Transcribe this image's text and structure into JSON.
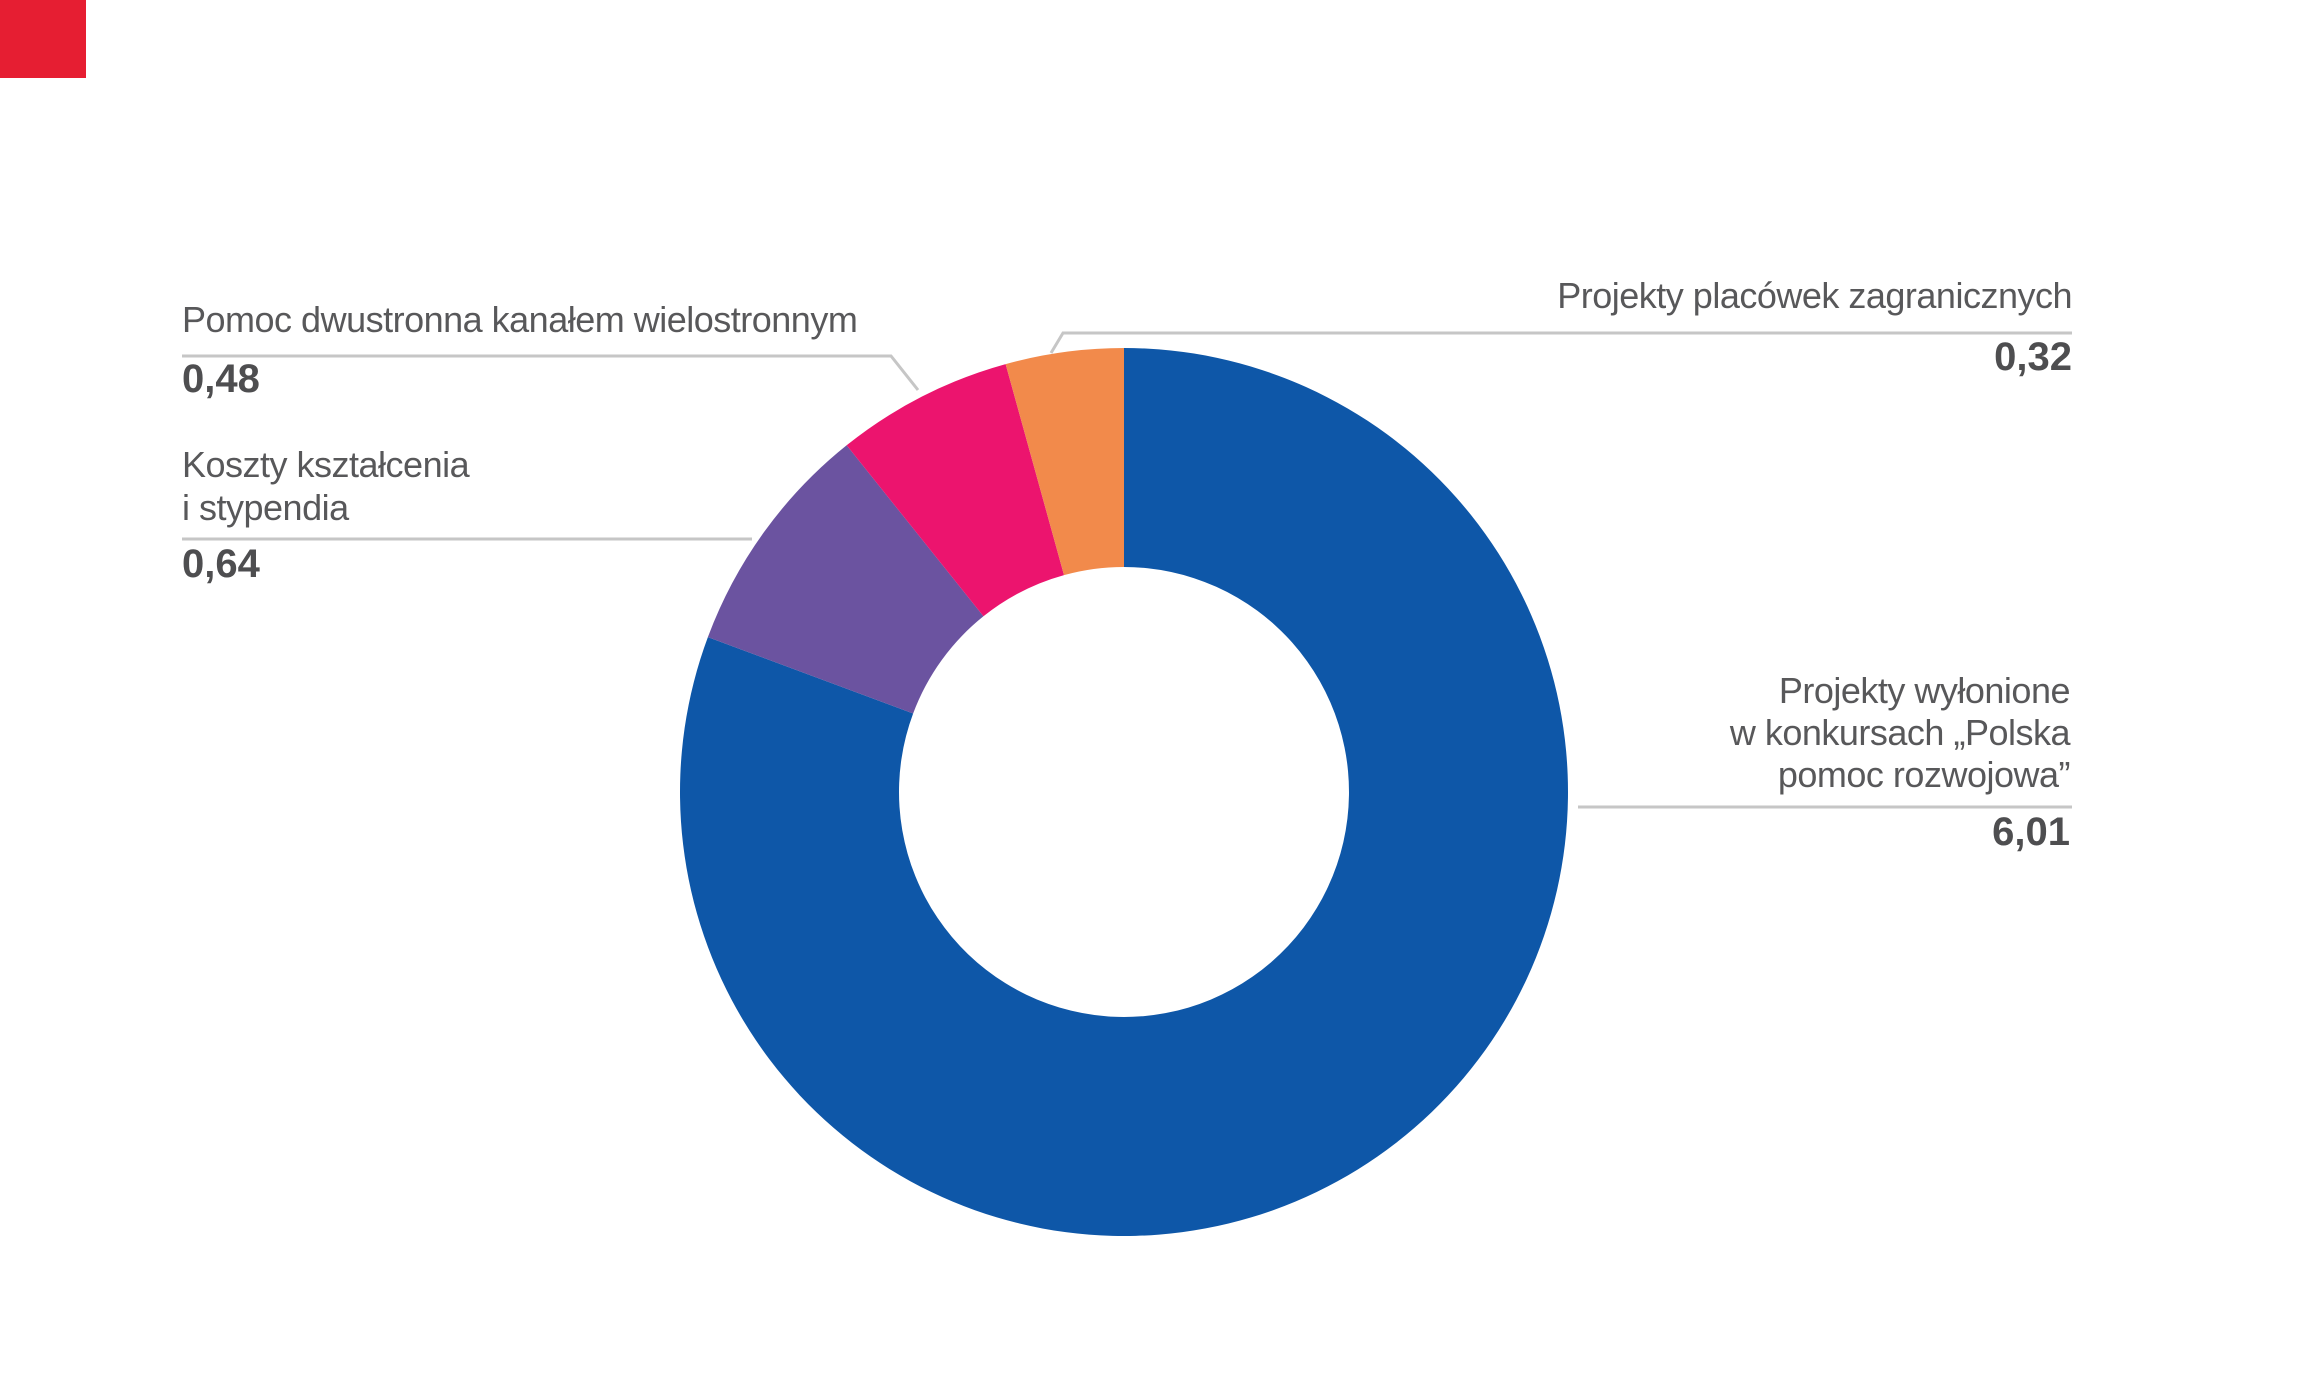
{
  "chart_data": {
    "type": "pie",
    "variant": "donut",
    "direction": "clockwise",
    "start_angle_deg": 0,
    "hole_ratio": 0.51,
    "total": 7.45,
    "categories": [
      "Projekty wyłonione w konkursach „Polska pomoc rozwojowa”",
      "Koszty kształcenia i stypendia",
      "Pomoc dwustronna kanałem wielostronnym",
      "Projekty placówek zagranicznych"
    ],
    "values": [
      6.01,
      0.64,
      0.48,
      0.32
    ],
    "value_labels": [
      "6,01",
      "0,64",
      "0,48",
      "0,32"
    ],
    "colors": [
      "#0E57A8",
      "#6B53A0",
      "#EC146E",
      "#F28A4B"
    ],
    "ids": [
      "projekty-wylonione-w-konkursach",
      "koszty-ksztalcenia-i-stypendia",
      "pomoc-dwustronna-kanalem-wielostronnym",
      "projekty-placowek-zagranicznych"
    ],
    "legend_position": "none",
    "label_style": "callouts-with-leader-lines"
  },
  "callouts": {
    "zagraniczne": {
      "label": "Projekty placówek zagranicznych",
      "value": "0,32"
    },
    "pomoc_dwustronna": {
      "label": "Pomoc dwustronna kanałem wielostronnym",
      "value": "0,48"
    },
    "koszty": {
      "label": "Koszty kształcenia\ni stypendia",
      "value": "0,64"
    },
    "konkursy": {
      "label": "Projekty wyłonione\nw konkursach „Polska\npomoc rozwojowa”",
      "value": "6,01"
    }
  },
  "decor": {
    "corner_square_color": "#E61E32"
  },
  "styles": {
    "label_color": "#58585A",
    "value_color": "#4E4E50",
    "leader_line_color": "#C6C6C6",
    "background": "#FFFFFF"
  }
}
